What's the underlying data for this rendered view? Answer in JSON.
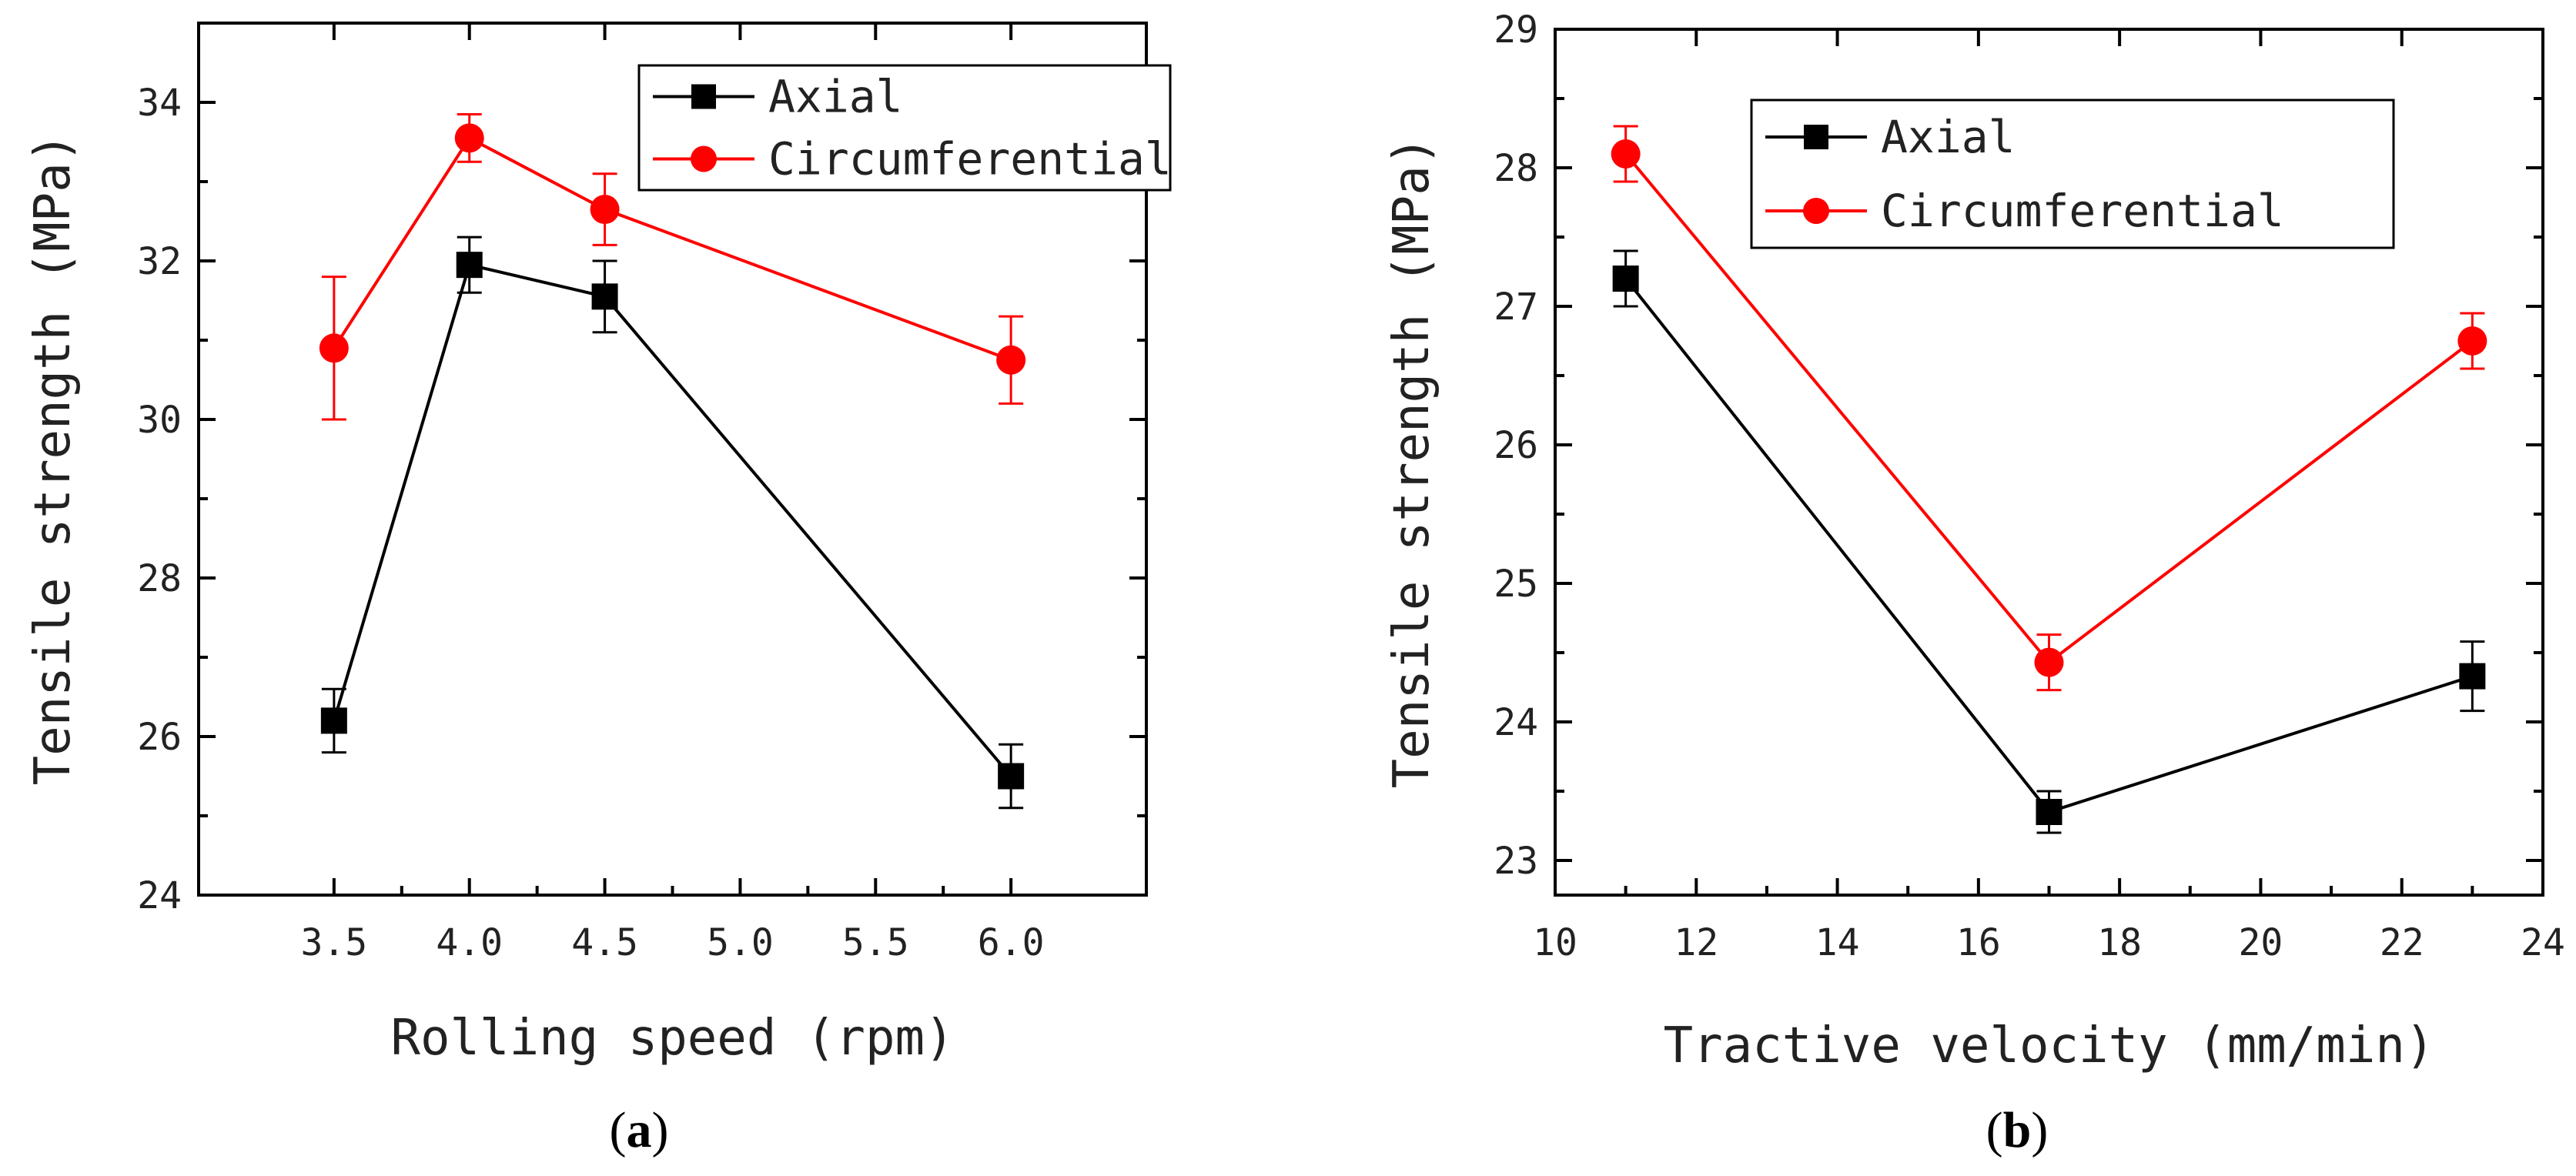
{
  "chart_data": [
    {
      "type": "line",
      "panel_label_open": "(",
      "panel_label": "a",
      "panel_label_close": ")",
      "xlabel": "Rolling speed (rpm)",
      "ylabel": "Tensile strength (MPa)",
      "xlim": [
        3.0,
        6.5
      ],
      "ylim": [
        24,
        35
      ],
      "xticks": [
        3.5,
        4.0,
        4.5,
        5.0,
        5.5,
        6.0
      ],
      "xtick_labels": [
        "3.5",
        "4.0",
        "4.5",
        "5.0",
        "5.5",
        "6.0"
      ],
      "yticks": [
        24,
        26,
        28,
        30,
        32,
        34
      ],
      "ytick_labels": [
        "24",
        "26",
        "28",
        "30",
        "32",
        "34"
      ],
      "legend_position": "top-right",
      "series": [
        {
          "name": "Axial",
          "marker": "square",
          "color": "#000000",
          "x": [
            3.5,
            4.0,
            4.5,
            6.0
          ],
          "y": [
            26.2,
            31.95,
            31.55,
            25.5
          ],
          "err": [
            0.4,
            0.35,
            0.45,
            0.4
          ]
        },
        {
          "name": "Circumferential",
          "marker": "circle",
          "color": "#ff0000",
          "x": [
            3.5,
            4.0,
            4.5,
            6.0
          ],
          "y": [
            30.9,
            33.55,
            32.65,
            30.75
          ],
          "err": [
            0.9,
            0.3,
            0.45,
            0.55
          ]
        }
      ]
    },
    {
      "type": "line",
      "panel_label_open": "(",
      "panel_label": "b",
      "panel_label_close": ")",
      "xlabel": "Tractive velocity (mm/min)",
      "ylabel": "Tensile strength (MPa)",
      "xlim": [
        10,
        24
      ],
      "ylim": [
        22.75,
        29
      ],
      "xticks": [
        10,
        12,
        14,
        16,
        18,
        20,
        22,
        24
      ],
      "xtick_labels": [
        "10",
        "12",
        "14",
        "16",
        "18",
        "20",
        "22",
        "24"
      ],
      "yticks": [
        23,
        24,
        25,
        26,
        27,
        28,
        29
      ],
      "ytick_labels": [
        "23",
        "24",
        "25",
        "26",
        "27",
        "28",
        "29"
      ],
      "legend_position": "top-right",
      "series": [
        {
          "name": "Axial",
          "marker": "square",
          "color": "#000000",
          "x": [
            11,
            17,
            23
          ],
          "y": [
            27.2,
            23.35,
            24.33
          ],
          "err": [
            0.2,
            0.15,
            0.25
          ]
        },
        {
          "name": "Circumferential",
          "marker": "circle",
          "color": "#ff0000",
          "x": [
            11,
            17,
            23
          ],
          "y": [
            28.1,
            24.43,
            26.75
          ],
          "err": [
            0.2,
            0.2,
            0.2
          ]
        }
      ]
    }
  ]
}
